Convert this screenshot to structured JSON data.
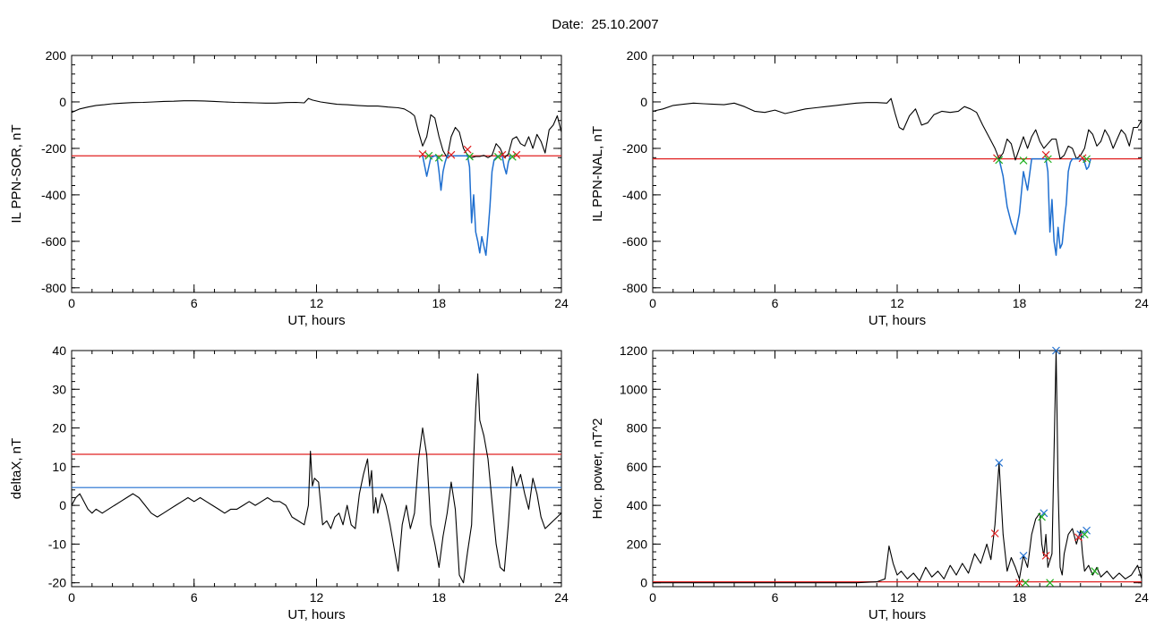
{
  "page": {
    "title": "Date:  25.10.2007"
  },
  "chart_data": [
    {
      "type": "line",
      "id": "p1",
      "ylabel": "IL PPN-SOR, nT",
      "xlabel": "UT, hours",
      "xlim": [
        0,
        24
      ],
      "ylim": [
        -820,
        200
      ],
      "xticks": [
        0,
        6,
        12,
        18,
        24
      ],
      "yticks": [
        -800,
        -600,
        -400,
        -200,
        0,
        200
      ],
      "hlines": [
        {
          "y": -232,
          "color": "#e02020"
        }
      ],
      "series": [
        {
          "color": "#000000",
          "width": 1.1,
          "x": [
            0,
            0.4,
            0.8,
            1.2,
            1.6,
            2,
            2.5,
            3,
            3.5,
            4,
            4.5,
            5,
            5.5,
            6,
            6.5,
            7,
            7.5,
            8,
            8.5,
            9,
            9.5,
            10,
            10.5,
            11,
            11.4,
            11.6,
            11.8,
            12.2,
            12.6,
            13,
            13.5,
            14,
            14.5,
            15,
            15.5,
            16,
            16.3,
            16.6,
            16.8,
            17,
            17.2,
            17.4,
            17.6,
            17.8,
            18,
            18.2,
            18.4,
            18.6,
            18.8,
            19,
            19.2,
            19.4,
            19.6,
            19.8,
            20,
            20.2,
            20.4,
            20.6,
            20.8,
            21,
            21.2,
            21.4,
            21.6,
            21.8,
            22,
            22.2,
            22.4,
            22.6,
            22.8,
            23,
            23.2,
            23.4,
            23.6,
            23.8,
            24
          ],
          "y": [
            -45,
            -30,
            -22,
            -15,
            -12,
            -8,
            -5,
            -3,
            -2,
            0,
            2,
            3,
            5,
            5,
            4,
            2,
            0,
            -2,
            -3,
            -4,
            -5,
            -5,
            -3,
            -2,
            -4,
            15,
            8,
            0,
            -5,
            -10,
            -12,
            -15,
            -18,
            -18,
            -22,
            -25,
            -30,
            -45,
            -60,
            -130,
            -190,
            -150,
            -55,
            -70,
            -150,
            -210,
            -240,
            -150,
            -110,
            -130,
            -200,
            -230,
            -240,
            -235,
            -235,
            -230,
            -240,
            -230,
            -180,
            -200,
            -240,
            -225,
            -160,
            -150,
            -180,
            -190,
            -150,
            -200,
            -140,
            -170,
            -220,
            -120,
            -100,
            -60,
            -130
          ]
        },
        {
          "color": "#1f6fd0",
          "width": 1.5,
          "x": [
            17.2,
            17.4,
            17.6,
            17.8,
            17.9,
            18,
            18.1,
            18.2,
            18.3,
            18.4,
            18.5,
            18.6,
            19.4,
            19.5,
            19.6,
            19.7,
            19.8,
            19.9,
            20,
            20.1,
            20.2,
            20.3,
            20.4,
            20.5,
            20.6,
            20.7,
            20.8,
            20.9,
            21.1,
            21.2,
            21.3,
            21.4,
            21.5
          ],
          "y": [
            -232,
            -320,
            -240,
            -232,
            -232,
            -300,
            -380,
            -300,
            -260,
            -232,
            -232,
            -232,
            -232,
            -280,
            -520,
            -400,
            -560,
            -600,
            -650,
            -580,
            -620,
            -660,
            -560,
            -450,
            -300,
            -250,
            -240,
            -232,
            -232,
            -280,
            -310,
            -260,
            -232
          ]
        }
      ],
      "markers": [
        {
          "color": "#e02020",
          "x": [
            17.2,
            18.6,
            19.4,
            21.1,
            21.8
          ],
          "y": [
            -225,
            -228,
            -205,
            -228,
            -228
          ]
        },
        {
          "color": "#20b020",
          "x": [
            17.5,
            18.0,
            19.5,
            20.9,
            21.6
          ],
          "y": [
            -232,
            -240,
            -235,
            -236,
            -236
          ]
        }
      ]
    },
    {
      "type": "line",
      "id": "p2",
      "ylabel": "IL PPN-NAL, nT",
      "xlabel": "UT, hours",
      "xlim": [
        0,
        24
      ],
      "ylim": [
        -820,
        200
      ],
      "xticks": [
        0,
        6,
        12,
        18,
        24
      ],
      "yticks": [
        -800,
        -600,
        -400,
        -200,
        0,
        200
      ],
      "hlines": [
        {
          "y": -245,
          "color": "#e02020"
        }
      ],
      "series": [
        {
          "color": "#000000",
          "width": 1.1,
          "x": [
            0,
            0.5,
            1,
            1.5,
            2,
            2.5,
            3,
            3.5,
            4,
            4.5,
            5,
            5.5,
            6,
            6.5,
            7,
            7.5,
            8,
            8.5,
            9,
            9.5,
            10,
            10.5,
            11,
            11.5,
            11.7,
            11.9,
            12.1,
            12.3,
            12.6,
            12.9,
            13.2,
            13.5,
            13.8,
            14.2,
            14.6,
            15,
            15.3,
            15.6,
            15.9,
            16.2,
            16.5,
            16.8,
            17,
            17.2,
            17.4,
            17.6,
            17.8,
            18,
            18.2,
            18.4,
            18.6,
            18.8,
            19,
            19.2,
            19.4,
            19.6,
            19.8,
            20,
            20.2,
            20.4,
            20.6,
            20.8,
            21,
            21.2,
            21.4,
            21.6,
            21.8,
            22,
            22.2,
            22.4,
            22.6,
            22.8,
            23,
            23.2,
            23.4,
            23.6,
            23.8,
            24
          ],
          "y": [
            -40,
            -30,
            -15,
            -10,
            -5,
            -8,
            -10,
            -12,
            -5,
            -20,
            -40,
            -45,
            -35,
            -50,
            -40,
            -30,
            -25,
            -20,
            -15,
            -10,
            -5,
            -3,
            -3,
            -5,
            15,
            -50,
            -110,
            -120,
            -60,
            -30,
            -100,
            -90,
            -55,
            -40,
            -45,
            -40,
            -20,
            -30,
            -45,
            -100,
            -150,
            -200,
            -245,
            -220,
            -160,
            -180,
            -250,
            -200,
            -150,
            -200,
            -150,
            -120,
            -170,
            -200,
            -180,
            -160,
            -160,
            -245,
            -230,
            -190,
            -200,
            -245,
            -230,
            -200,
            -120,
            -140,
            -190,
            -170,
            -120,
            -150,
            -200,
            -160,
            -120,
            -140,
            -190,
            -110,
            -110,
            -80
          ]
        },
        {
          "color": "#1f6fd0",
          "width": 1.5,
          "x": [
            17.0,
            17.2,
            17.4,
            17.6,
            17.8,
            18,
            18.2,
            18.4,
            18.6,
            19.3,
            19.4,
            19.5,
            19.6,
            19.7,
            19.8,
            19.9,
            20,
            20.1,
            20.2,
            20.3,
            20.4,
            20.5,
            20.6,
            20.7,
            20.9,
            21.1,
            21.2,
            21.3,
            21.4,
            21.5
          ],
          "y": [
            -245,
            -320,
            -450,
            -520,
            -570,
            -480,
            -300,
            -380,
            -245,
            -245,
            -300,
            -560,
            -420,
            -600,
            -660,
            -540,
            -630,
            -610,
            -520,
            -440,
            -300,
            -260,
            -245,
            -245,
            -245,
            -245,
            -260,
            -290,
            -280,
            -245
          ]
        }
      ],
      "markers": [
        {
          "color": "#e02020",
          "x": [
            16.9,
            19.3,
            21.1
          ],
          "y": [
            -242,
            -228,
            -242
          ]
        },
        {
          "color": "#20b020",
          "x": [
            17.0,
            18.2,
            19.4,
            21.3
          ],
          "y": [
            -250,
            -252,
            -246,
            -246
          ]
        }
      ]
    },
    {
      "type": "line",
      "id": "p3",
      "ylabel": "deltaX, nT",
      "xlabel": "UT, hours",
      "xlim": [
        0,
        24
      ],
      "ylim": [
        -21,
        40
      ],
      "xticks": [
        0,
        6,
        12,
        18,
        24
      ],
      "yticks": [
        -20,
        -10,
        0,
        10,
        20,
        30,
        40
      ],
      "hlines": [
        {
          "y": 13.2,
          "color": "#e02020"
        },
        {
          "y": 4.6,
          "color": "#1f6fd0"
        }
      ],
      "series": [
        {
          "color": "#000000",
          "width": 1.1,
          "x": [
            0,
            0.2,
            0.4,
            0.6,
            0.8,
            1,
            1.2,
            1.5,
            1.8,
            2.1,
            2.4,
            2.7,
            3,
            3.3,
            3.6,
            3.9,
            4.2,
            4.5,
            4.8,
            5.1,
            5.4,
            5.7,
            6,
            6.3,
            6.6,
            6.9,
            7.2,
            7.5,
            7.8,
            8.1,
            8.4,
            8.7,
            9,
            9.3,
            9.6,
            9.9,
            10.2,
            10.5,
            10.8,
            11.1,
            11.4,
            11.6,
            11.7,
            11.8,
            11.9,
            12.1,
            12.3,
            12.5,
            12.7,
            12.9,
            13.1,
            13.3,
            13.5,
            13.7,
            13.9,
            14.1,
            14.3,
            14.5,
            14.6,
            14.7,
            14.8,
            14.9,
            15,
            15.2,
            15.4,
            15.6,
            15.8,
            16,
            16.2,
            16.4,
            16.6,
            16.8,
            17,
            17.2,
            17.4,
            17.6,
            17.8,
            18,
            18.2,
            18.4,
            18.6,
            18.8,
            19,
            19.2,
            19.4,
            19.6,
            19.7,
            19.8,
            19.9,
            20,
            20.1,
            20.2,
            20.4,
            20.6,
            20.8,
            21,
            21.2,
            21.4,
            21.6,
            21.8,
            22,
            22.2,
            22.4,
            22.6,
            22.8,
            23,
            23.2,
            23.4,
            23.6,
            23.8,
            24
          ],
          "y": [
            0,
            2,
            3,
            1,
            -1,
            -2,
            -1,
            -2,
            -1,
            0,
            1,
            2,
            3,
            2,
            0,
            -2,
            -3,
            -2,
            -1,
            0,
            1,
            2,
            1,
            2,
            1,
            0,
            -1,
            -2,
            -1,
            -1,
            0,
            1,
            0,
            1,
            2,
            1,
            1,
            0,
            -3,
            -4,
            -5,
            0,
            14,
            5,
            7,
            6,
            -5,
            -4,
            -6,
            -3,
            -2,
            -5,
            0,
            -5,
            -6,
            3,
            8,
            12,
            5,
            9,
            -2,
            2,
            -2,
            3,
            0,
            -5,
            -11,
            -17,
            -5,
            0,
            -6,
            -2,
            12,
            20,
            13,
            -5,
            -10,
            -16,
            -8,
            -2,
            6,
            -1,
            -18,
            -20,
            -12,
            -5,
            12,
            25,
            34,
            22,
            20,
            18,
            12,
            1,
            -10,
            -16,
            -17,
            -5,
            10,
            5,
            8,
            3,
            -1,
            7,
            3,
            -3,
            -6,
            -5,
            -4,
            -3,
            -2
          ]
        }
      ],
      "markers": []
    },
    {
      "type": "line",
      "id": "p4",
      "ylabel": "Hor. power, nT^2",
      "xlabel": "UT, hours",
      "xlim": [
        0,
        24
      ],
      "ylim": [
        -20,
        1200
      ],
      "xticks": [
        0,
        6,
        12,
        18,
        24
      ],
      "yticks": [
        0,
        200,
        400,
        600,
        800,
        1000,
        1200
      ],
      "hlines": [
        {
          "y": 5,
          "color": "#e02020"
        }
      ],
      "series": [
        {
          "color": "#000000",
          "width": 1.1,
          "x": [
            0,
            2,
            4,
            6,
            8,
            10,
            11,
            11.4,
            11.6,
            11.8,
            12,
            12.2,
            12.5,
            12.8,
            13.1,
            13.4,
            13.7,
            14,
            14.3,
            14.6,
            14.9,
            15.2,
            15.5,
            15.8,
            16.1,
            16.4,
            16.6,
            16.8,
            17,
            17.2,
            17.4,
            17.6,
            17.8,
            18,
            18.2,
            18.4,
            18.6,
            18.8,
            19,
            19.1,
            19.2,
            19.3,
            19.4,
            19.6,
            19.8,
            19.9,
            20,
            20.1,
            20.2,
            20.4,
            20.6,
            20.8,
            21,
            21.1,
            21.2,
            21.4,
            21.6,
            21.8,
            22,
            22.3,
            22.6,
            22.9,
            23.2,
            23.5,
            23.8,
            24
          ],
          "y": [
            0,
            0,
            0,
            0,
            0,
            0,
            5,
            20,
            190,
            100,
            40,
            60,
            20,
            50,
            10,
            80,
            30,
            60,
            20,
            90,
            40,
            100,
            50,
            150,
            100,
            200,
            120,
            300,
            620,
            250,
            60,
            130,
            80,
            20,
            140,
            80,
            250,
            330,
            360,
            200,
            140,
            250,
            80,
            150,
            1200,
            500,
            80,
            40,
            150,
            250,
            280,
            200,
            270,
            150,
            60,
            90,
            40,
            80,
            30,
            60,
            20,
            50,
            20,
            40,
            90,
            20
          ]
        }
      ],
      "markers": [
        {
          "color": "#1f6fd0",
          "x": [
            17.0,
            18.2,
            19.2,
            19.8,
            21.0,
            21.3
          ],
          "y": [
            620,
            140,
            360,
            1200,
            250,
            270
          ]
        },
        {
          "color": "#e02020",
          "x": [
            16.8,
            18.0,
            19.3,
            20.9
          ],
          "y": [
            255,
            0,
            140,
            235
          ]
        },
        {
          "color": "#20b020",
          "x": [
            18.3,
            19.1,
            19.5,
            21.2,
            21.7
          ],
          "y": [
            0,
            340,
            0,
            250,
            60
          ]
        }
      ]
    }
  ]
}
